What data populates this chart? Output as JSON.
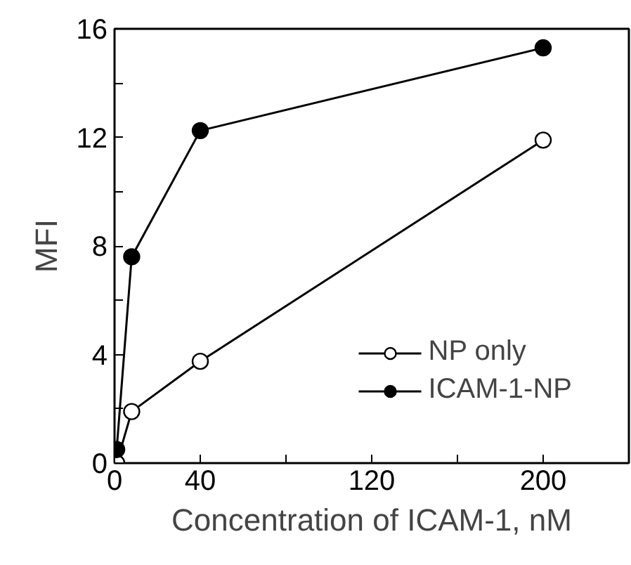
{
  "chart_data": {
    "type": "line",
    "xlabel": "Concentration of ICAM-1, nM",
    "ylabel": "MFI",
    "xlim": [
      0,
      240
    ],
    "ylim": [
      0,
      16
    ],
    "xticks": [
      0,
      40,
      {
        "value": 80,
        "label": null
      },
      120,
      {
        "value": 160,
        "label": null
      },
      200
    ],
    "yticks": [
      0,
      {
        "value": 2,
        "label": null
      },
      4,
      {
        "value": 6,
        "label": null
      },
      8,
      {
        "value": 10,
        "label": null
      },
      12,
      {
        "value": 14,
        "label": null
      },
      16
    ],
    "marker": "circle",
    "line_style": "solid",
    "grid": false,
    "legend": "bottom right",
    "series": [
      {
        "name": "NP only",
        "color": "#000000",
        "marker": "circle_open",
        "x": [
          1,
          8,
          40,
          200
        ],
        "values": [
          0,
          1.9,
          3.75,
          11.9
        ]
      },
      {
        "name": "ICAM-1-NP",
        "color": "#000000",
        "x": [
          1,
          8,
          40,
          200
        ],
        "values": [
          0.5,
          7.6,
          12.25,
          15.3
        ]
      }
    ]
  }
}
